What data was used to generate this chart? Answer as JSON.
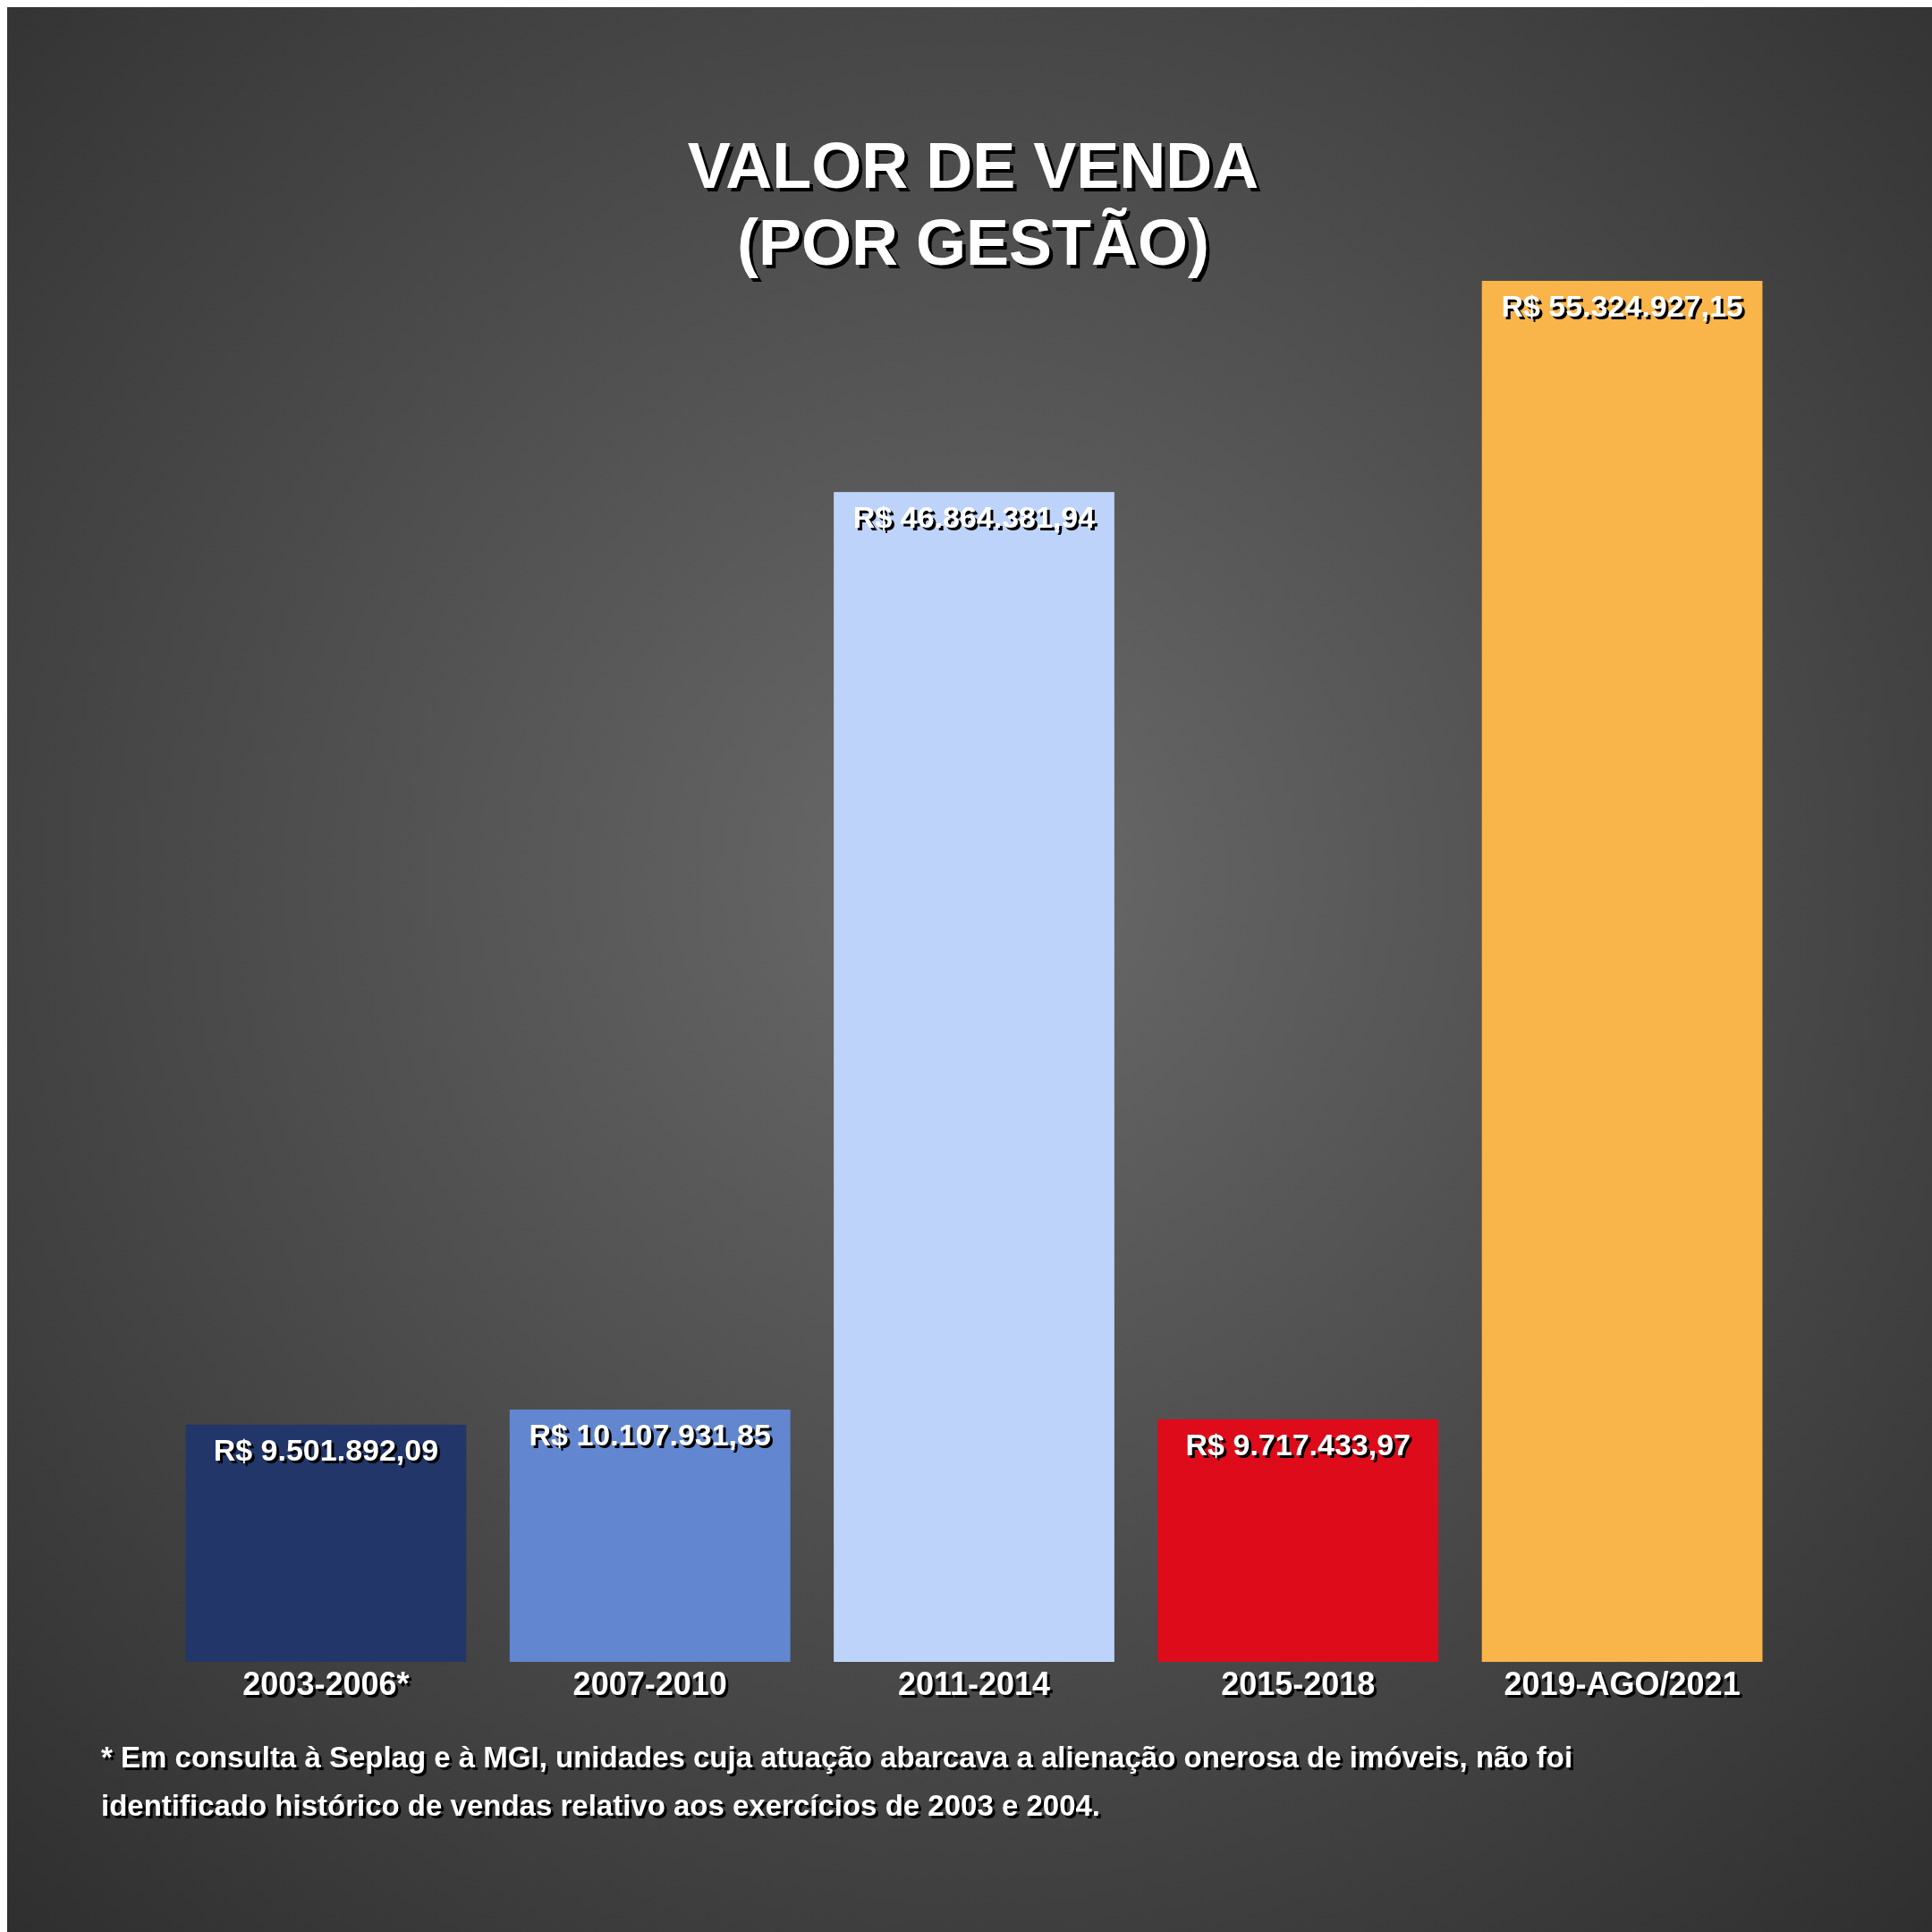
{
  "chart_data": {
    "type": "bar",
    "title": "VALOR DE VENDA\n(POR GESTÃO)",
    "categories": [
      "2003-2006*",
      "2007-2010",
      "2011-2014",
      "2015-2018",
      "2019-AGO/2021"
    ],
    "values": [
      9501892.09,
      10107931.85,
      46864381.94,
      9717433.97,
      55324927.15
    ],
    "colors": [
      "#22366a",
      "#6287d0",
      "#bdd3fa",
      "#de0b1a",
      "#f9b44a"
    ],
    "value_labels": [
      "R$ 9.501.892,09",
      "R$ 10.107.931,85",
      "R$ 46.864.381,94",
      "R$ 9.717.433,97",
      "R$ 55.324.927,15"
    ],
    "annotations": [
      "* Em consulta à Seplag e à MGI, unidades cuja atuação abarcava a alienação onerosa de imóveis, não foi identificado histórico de vendas relativo aos exercícios de 2003 e 2004."
    ]
  }
}
